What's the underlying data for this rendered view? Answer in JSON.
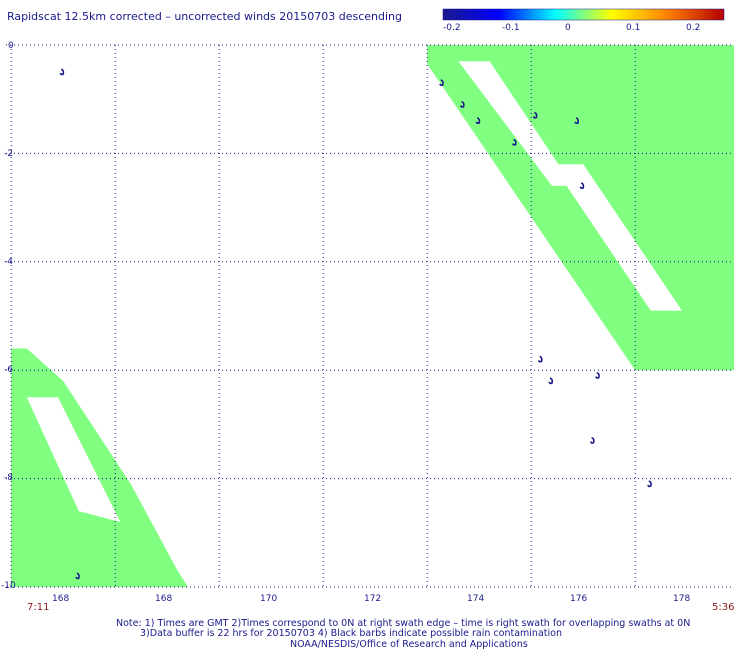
{
  "chart_data": {
    "type": "heatmap",
    "title": "Rapidscat 12.5km corrected – uncorrected winds 20150703 descending",
    "colorbar": {
      "ticks": [
        "-0.2",
        "-0.1",
        "0",
        "0.1",
        "0.2"
      ],
      "colors": [
        "#1a1a8c",
        "#0000ff",
        "#00ffff",
        "#ffff00",
        "#ff8000",
        "#b40000"
      ]
    },
    "x_ticks": [
      "168",
      "168",
      "170",
      "172",
      "174",
      "176",
      "178"
    ],
    "y_ticks": [
      "0",
      "-2",
      "-4",
      "-6",
      "-8",
      "-10"
    ],
    "xlim": [
      165.9,
      179.9
    ],
    "ylim": [
      -10,
      0
    ],
    "grid": true,
    "fill_color": "#80ff80",
    "time_left": "7:11",
    "time_right": "5:36",
    "swaths": [
      {
        "points": [
          [
            174.0,
            0
          ],
          [
            179.9,
            0
          ],
          [
            179.9,
            -6.0
          ],
          [
            178.0,
            -6.0
          ],
          [
            174.0,
            -0.35
          ]
        ]
      },
      {
        "points": [
          [
            166.0,
            -5.6
          ],
          [
            166.3,
            -5.6
          ],
          [
            167.0,
            -6.2
          ],
          [
            168.3,
            -8.1
          ],
          [
            169.2,
            -9.7
          ],
          [
            169.4,
            -10
          ],
          [
            166.0,
            -10
          ]
        ]
      }
    ],
    "swath_gaps": [
      {
        "points": [
          [
            174.6,
            -0.3
          ],
          [
            175.2,
            -0.3
          ],
          [
            176.8,
            -2.6
          ],
          [
            176.4,
            -2.6
          ]
        ]
      },
      {
        "points": [
          [
            176.4,
            -2.2
          ],
          [
            177.0,
            -2.2
          ],
          [
            178.9,
            -4.9
          ],
          [
            178.3,
            -4.9
          ]
        ]
      },
      {
        "points": [
          [
            166.3,
            -6.5
          ],
          [
            166.9,
            -6.5
          ],
          [
            168.1,
            -8.8
          ],
          [
            167.3,
            -8.6
          ]
        ]
      }
    ],
    "barbs": [
      [
        167.0,
        -0.5
      ],
      [
        174.3,
        -0.7
      ],
      [
        174.7,
        -1.1
      ],
      [
        175.0,
        -1.4
      ],
      [
        175.7,
        -1.8
      ],
      [
        176.1,
        -1.3
      ],
      [
        176.9,
        -1.4
      ],
      [
        177.0,
        -2.6
      ],
      [
        176.2,
        -5.8
      ],
      [
        176.4,
        -6.2
      ],
      [
        177.3,
        -6.1
      ],
      [
        177.2,
        -7.3
      ],
      [
        178.3,
        -8.1
      ],
      [
        167.3,
        -9.8
      ]
    ]
  },
  "notes": [
    "Note: 1) Times are GMT 2)Times correspond to 0N at right swath edge – time is right swath for overlapping swaths at 0N",
    "3)Data buffer is 22 hrs for 20150703 4) Black barbs indicate possible rain contamination",
    "NOAA/NESDIS/Office of Research and Applications"
  ]
}
